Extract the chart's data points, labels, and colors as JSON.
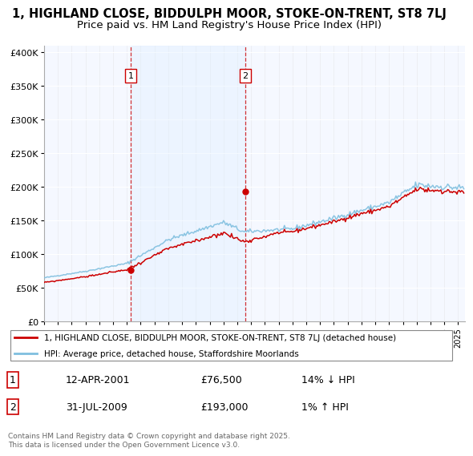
{
  "title_line1": "1, HIGHLAND CLOSE, BIDDULPH MOOR, STOKE-ON-TRENT, ST8 7LJ",
  "title_line2": "Price paid vs. HM Land Registry's House Price Index (HPI)",
  "title_fontsize": 10.5,
  "subtitle_fontsize": 9.5,
  "yticks": [
    0,
    50000,
    100000,
    150000,
    200000,
    250000,
    300000,
    350000,
    400000
  ],
  "ytick_labels": [
    "£0",
    "£50K",
    "£100K",
    "£150K",
    "£200K",
    "£250K",
    "£300K",
    "£350K",
    "£400K"
  ],
  "hpi_color": "#7fbfdf",
  "price_color": "#cc0000",
  "vline_color": "#cc0000",
  "shade_color": "#ddeeff",
  "background_color": "#ffffff",
  "plot_bg_color": "#f5f8ff",
  "grid_color": "#dddddd",
  "legend_label_red": "1, HIGHLAND CLOSE, BIDDULPH MOOR, STOKE-ON-TRENT, ST8 7LJ (detached house)",
  "legend_label_blue": "HPI: Average price, detached house, Staffordshire Moorlands",
  "sale1_date": "12-APR-2001",
  "sale1_price": 76500,
  "sale1_pct": "14% ↓ HPI",
  "sale1_year": 2001.29,
  "sale2_date": "31-JUL-2009",
  "sale2_price": 193000,
  "sale2_pct": "1% ↑ HPI",
  "sale2_year": 2009.58,
  "footer_text": "Contains HM Land Registry data © Crown copyright and database right 2025.\nThis data is licensed under the Open Government Licence v3.0.",
  "xmin": 1995.0,
  "xmax": 2025.5,
  "ymin": 0,
  "ymax": 410000
}
